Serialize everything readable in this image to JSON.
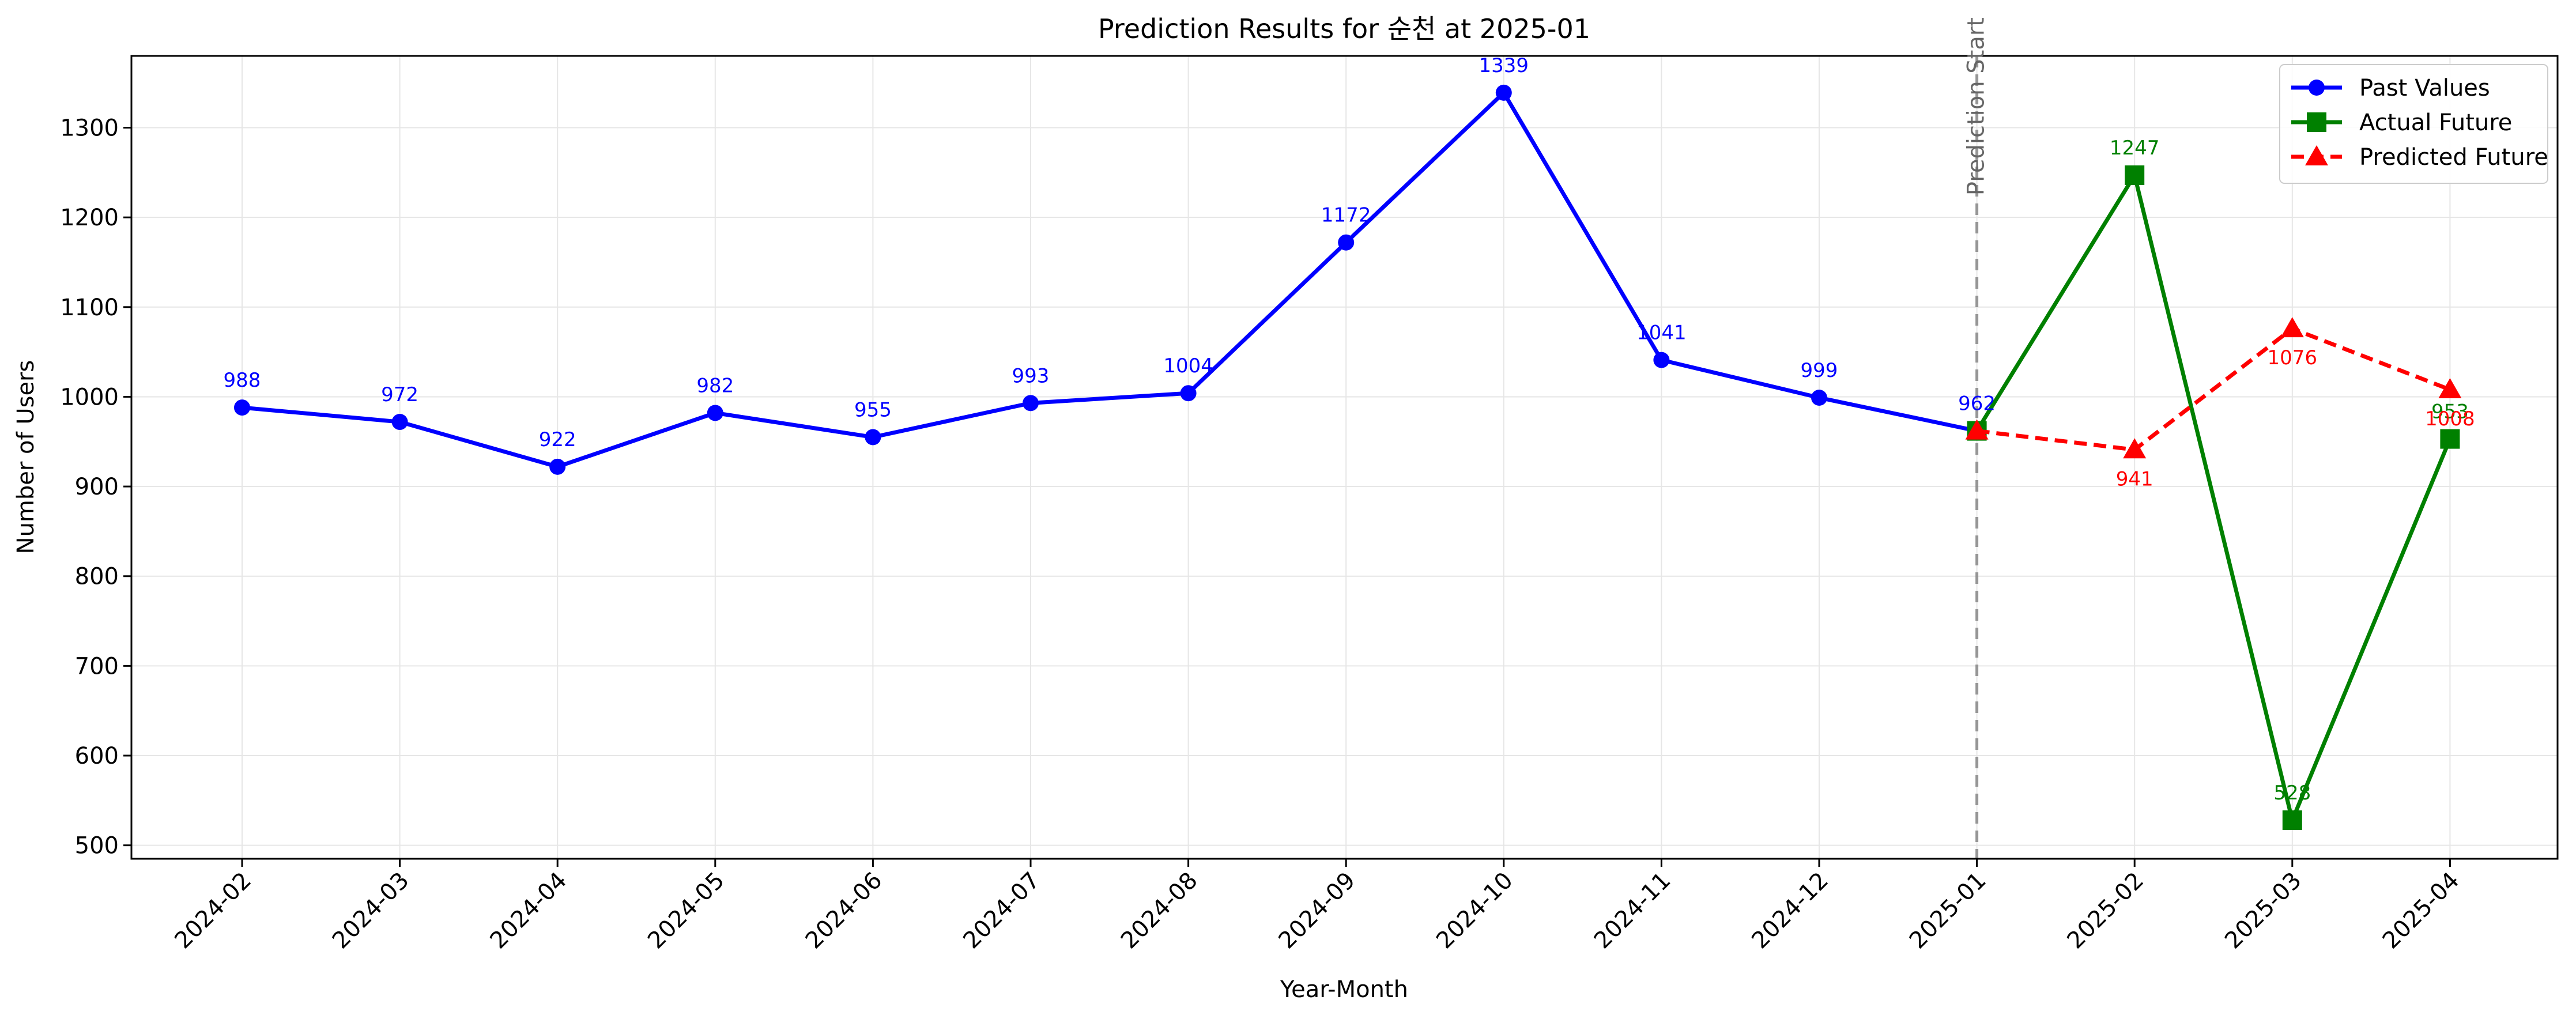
{
  "chart_data": {
    "type": "line",
    "title": "Prediction Results for 순천 at 2025-01",
    "xlabel": "Year-Month",
    "ylabel": "Number of Users",
    "categories": [
      "2024-02",
      "2024-03",
      "2024-04",
      "2024-05",
      "2024-06",
      "2024-07",
      "2024-08",
      "2024-09",
      "2024-10",
      "2024-11",
      "2024-12",
      "2025-01",
      "2025-02",
      "2025-03",
      "2025-04"
    ],
    "ylim": [
      485,
      1380
    ],
    "yticks": [
      500,
      600,
      700,
      800,
      900,
      1000,
      1100,
      1200,
      1300
    ],
    "grid": true,
    "legend_position": "top-right",
    "annotation": "Prediction Start",
    "annotation_at": "2025-01",
    "series": [
      {
        "name": "Past Values",
        "color": "#0000ff",
        "marker": "circle",
        "line": "solid",
        "label_side": "above",
        "x": [
          "2024-02",
          "2024-03",
          "2024-04",
          "2024-05",
          "2024-06",
          "2024-07",
          "2024-08",
          "2024-09",
          "2024-10",
          "2024-11",
          "2024-12",
          "2025-01"
        ],
        "values": [
          988,
          972,
          922,
          982,
          955,
          993,
          1004,
          1172,
          1339,
          1041,
          999,
          962
        ]
      },
      {
        "name": "Actual Future",
        "color": "#008000",
        "marker": "square",
        "line": "solid",
        "label_side": "above",
        "x": [
          "2025-01",
          "2025-02",
          "2025-03",
          "2025-04"
        ],
        "values": [
          962,
          1247,
          528,
          953
        ],
        "labeled": [
          false,
          true,
          true,
          true
        ]
      },
      {
        "name": "Predicted Future",
        "color": "#ff0000",
        "marker": "triangle",
        "line": "dashed",
        "label_side": "below",
        "x": [
          "2025-01",
          "2025-02",
          "2025-03",
          "2025-04"
        ],
        "values": [
          962,
          941,
          1076,
          1008
        ],
        "labeled": [
          false,
          true,
          true,
          true
        ]
      }
    ]
  }
}
